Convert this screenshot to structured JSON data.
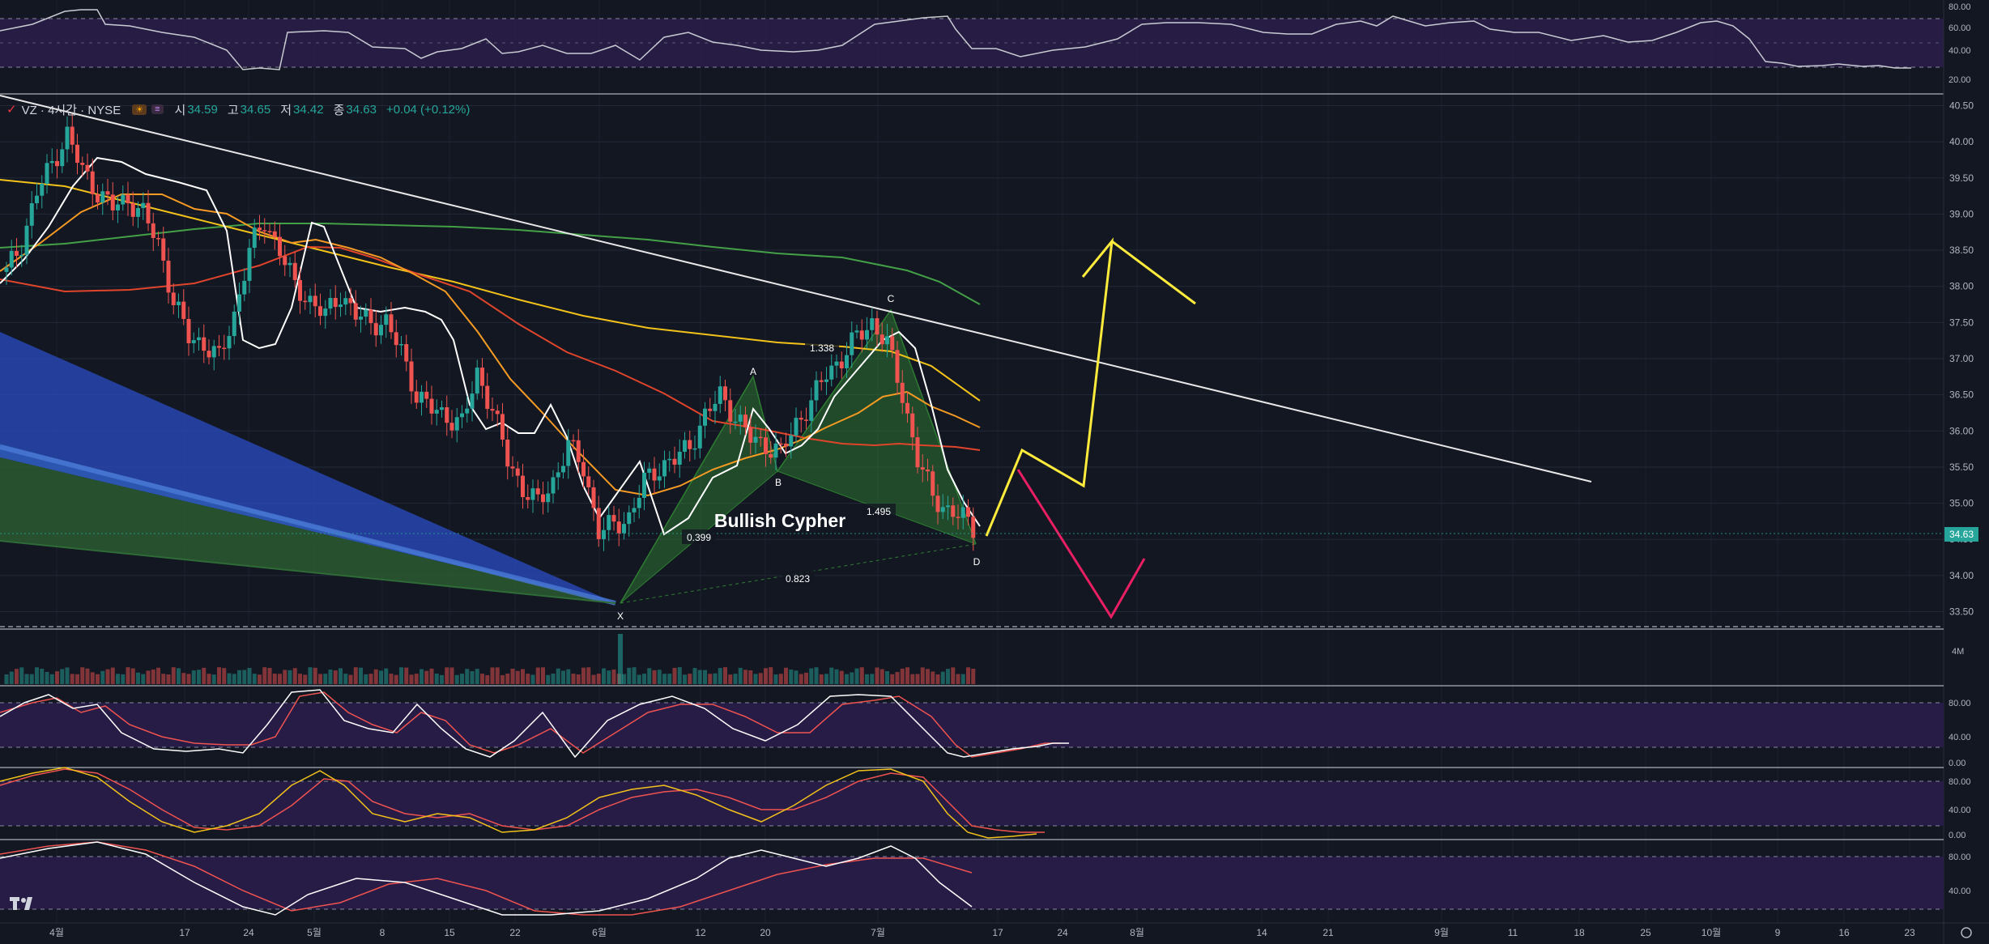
{
  "header": {
    "symbol": "VZ · 4시간 · NYSE",
    "open_label": "시",
    "open": "34.59",
    "high_label": "고",
    "high": "34.65",
    "low_label": "저",
    "low": "34.42",
    "close_label": "종",
    "close": "34.63",
    "change": "+0.04 (+0.12%)"
  },
  "colors": {
    "up": "#26a69a",
    "down": "#ef5350",
    "background": "#131722",
    "ema_white": "#ffffff",
    "ema_orange": "#f59a23",
    "ema_red": "#e0452b",
    "ema_yellow": "#f2c21a",
    "ema_green": "#43a047",
    "forecast_up": "#ffeb3b",
    "forecast_down": "#e91e63",
    "pattern_fill": "#2e7d32"
  },
  "price_axis": {
    "ticks": [
      "40.50",
      "40.00",
      "39.50",
      "39.00",
      "38.50",
      "38.00",
      "37.50",
      "37.00",
      "36.50",
      "36.00",
      "35.50",
      "35.00",
      "34.50",
      "34.00",
      "33.50"
    ],
    "current_price": "34.63"
  },
  "time_axis": {
    "labels": [
      "4월",
      "17",
      "24",
      "5월",
      "8",
      "15",
      "22",
      "6월",
      "12",
      "20",
      "7월",
      "17",
      "24",
      "8월",
      "14",
      "21",
      "9월",
      "11",
      "18",
      "25",
      "10월",
      "9",
      "16",
      "23"
    ]
  },
  "osc_top": {
    "ticks": [
      "80.00",
      "60.00",
      "40.00",
      "20.00"
    ]
  },
  "volume": {
    "label": "4M"
  },
  "osc_1": {
    "ticks": [
      "80.00",
      "40.00",
      "0.00"
    ]
  },
  "osc_2": {
    "ticks": [
      "80.00",
      "40.00",
      "0.00"
    ]
  },
  "osc_3": {
    "ticks": [
      "80.00",
      "40.00"
    ]
  },
  "pattern": {
    "title": "Bullish Cypher",
    "points": [
      {
        "name": "X",
        "price": 33.75
      },
      {
        "name": "A",
        "price": 36.6
      },
      {
        "name": "B",
        "price": 35.65
      },
      {
        "name": "C",
        "price": 37.62
      },
      {
        "name": "D",
        "price": 34.6
      }
    ],
    "ratios": [
      "0.399",
      "1.338",
      "1.495",
      "0.823"
    ]
  },
  "chart_data": {
    "type": "candlestick",
    "instrument": "VZ",
    "interval": "4시간",
    "exchange": "NYSE",
    "ylim": [
      33.3,
      40.7
    ],
    "trendline": {
      "from_price": 40.8,
      "to_price": 35.4
    },
    "series": [
      {
        "name": "close_path",
        "values": [
          38.2,
          38.6,
          39.3,
          39.7,
          40.1,
          39.6,
          39.3,
          39.1,
          39.2,
          39.0,
          38.6,
          37.8,
          37.3,
          37.2,
          37.0,
          37.6,
          38.5,
          38.9,
          38.5,
          38.0,
          37.8,
          37.6,
          37.9,
          37.6,
          37.5,
          37.5,
          37.1,
          36.5,
          36.3,
          36.2,
          36.1,
          36.8,
          36.3,
          35.6,
          35.2,
          35.0,
          35.3,
          35.8,
          35.5,
          34.6,
          34.7,
          34.8,
          35.3,
          35.5,
          35.6,
          35.8,
          36.2,
          36.5,
          36.2,
          35.9,
          35.8,
          35.7,
          36.1,
          36.4,
          36.8,
          37.0,
          37.3,
          37.5,
          37.2,
          36.5,
          35.6,
          35.1,
          34.9,
          34.8,
          34.6
        ]
      }
    ]
  }
}
